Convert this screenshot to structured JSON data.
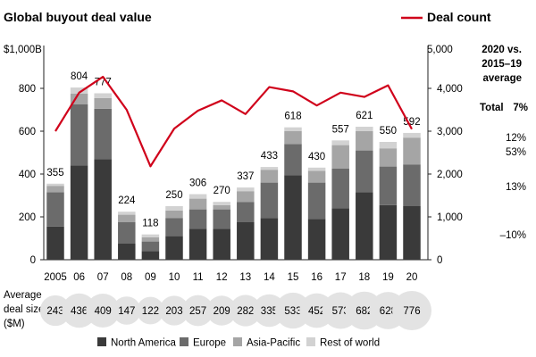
{
  "chart_data": {
    "type": "bar",
    "title": "Global buyout deal value",
    "ylabel": "$1,000B",
    "ylim": [
      0,
      1000
    ],
    "yticks": [
      0,
      200,
      400,
      600,
      800
    ],
    "y2label": "5,000",
    "y2lim": [
      0,
      5000
    ],
    "y2ticks": [
      "0",
      "1,000",
      "2,000",
      "3,000",
      "4,000"
    ],
    "categories": [
      "2005",
      "06",
      "07",
      "08",
      "09",
      "10",
      "11",
      "12",
      "13",
      "14",
      "15",
      "16",
      "17",
      "18",
      "19",
      "20"
    ],
    "series": [
      {
        "name": "North America",
        "color": "#3a3a3a",
        "values": [
          155,
          440,
          470,
          75,
          40,
          110,
          145,
          145,
          175,
          195,
          395,
          190,
          240,
          315,
          255,
          250
        ]
      },
      {
        "name": "Europe",
        "color": "#6b6b6b",
        "values": [
          160,
          285,
          235,
          100,
          45,
          85,
          90,
          90,
          95,
          165,
          145,
          170,
          185,
          195,
          180,
          195
        ]
      },
      {
        "name": "Asia-Pacific",
        "color": "#a5a5a5",
        "values": [
          30,
          50,
          50,
          35,
          20,
          35,
          50,
          20,
          50,
          60,
          60,
          55,
          110,
          90,
          85,
          125
        ]
      },
      {
        "name": "Rest of world",
        "color": "#d2d2d2",
        "values": [
          10,
          29,
          22,
          14,
          13,
          20,
          21,
          15,
          17,
          13,
          18,
          15,
          22,
          21,
          30,
          22
        ]
      }
    ],
    "totals": [
      "355",
      "804",
      "777",
      "224",
      "118",
      "250",
      "306",
      "270",
      "337",
      "433",
      "618",
      "430",
      "557",
      "621",
      "550",
      "592"
    ],
    "line_series": {
      "name": "Deal count",
      "color": "#d0021b",
      "values": [
        3000,
        3900,
        4270,
        3500,
        2180,
        3060,
        3480,
        3720,
        3400,
        4030,
        3930,
        3600,
        3900,
        3800,
        4070,
        3050
      ]
    },
    "deal_size_label": [
      "Average",
      "deal size",
      "($M)"
    ],
    "deal_sizes": [
      "243",
      "436",
      "409",
      "147",
      "122",
      "203",
      "257",
      "209",
      "282",
      "335",
      "533",
      "452",
      "573",
      "682",
      "628",
      "776"
    ],
    "growth": {
      "header": [
        "2020 vs.",
        "2015–19",
        "average"
      ],
      "total_label": "Total",
      "total_value": "7%",
      "values": [
        "12%",
        "53%",
        "13%",
        "–10%"
      ]
    }
  }
}
